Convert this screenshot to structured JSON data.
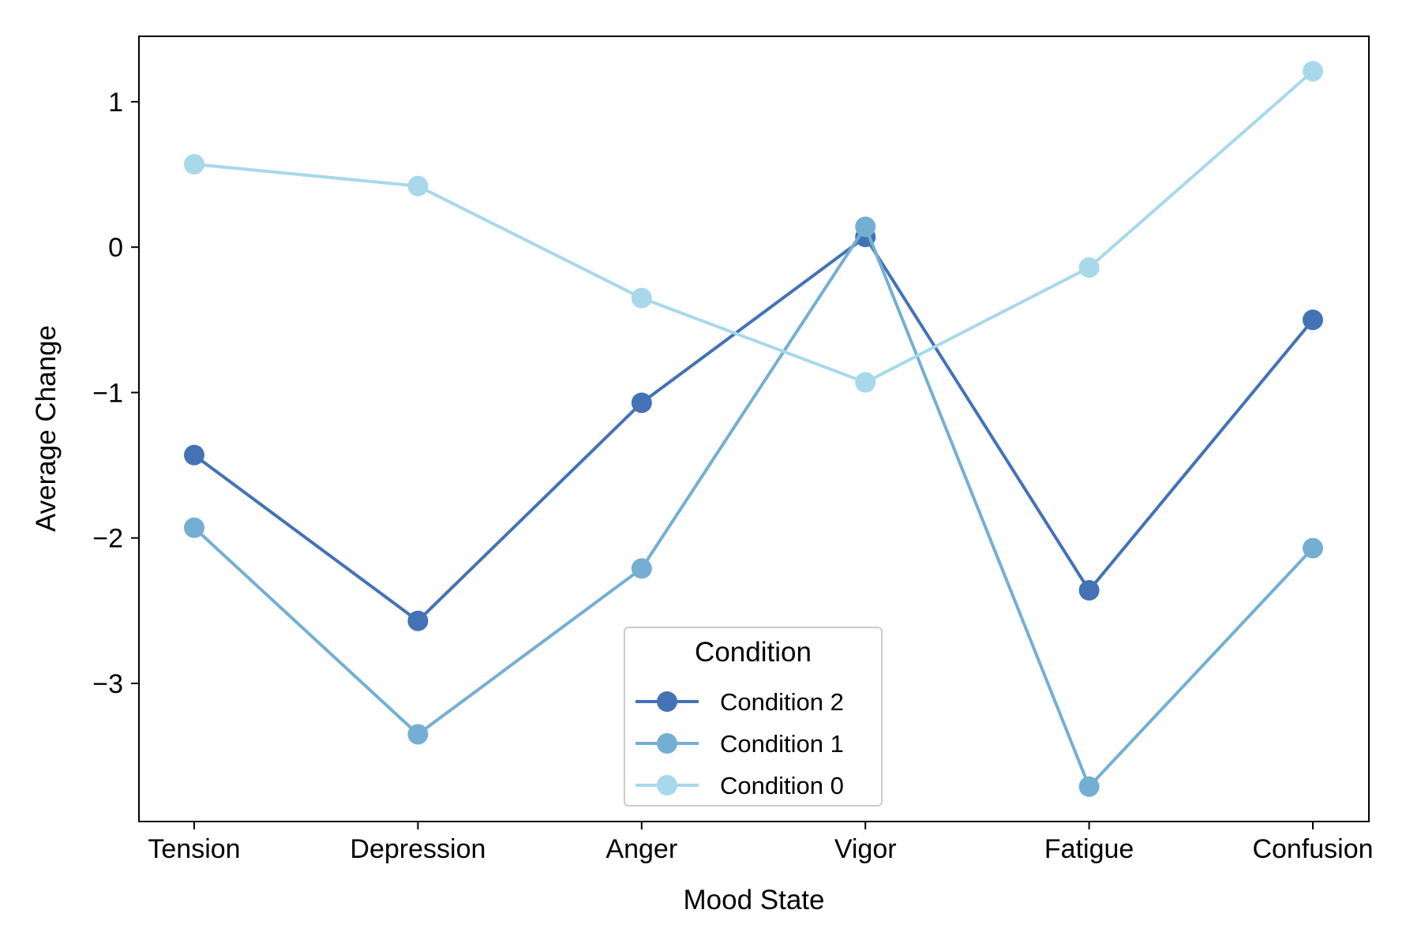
{
  "chart_data": {
    "type": "line",
    "xlabel": "Mood State",
    "ylabel": "Average Change",
    "categories": [
      "Tension",
      "Depression",
      "Anger",
      "Vigor",
      "Fatigue",
      "Confusion"
    ],
    "ylim": [
      -3.95,
      1.45
    ],
    "yticks": [
      1,
      0,
      -1,
      -2,
      -3
    ],
    "ytick_labels": [
      "1",
      "0",
      "−1",
      "−2",
      "−3"
    ],
    "grid": false,
    "legend": {
      "title": "Condition",
      "placement": "bottom-center"
    },
    "series": [
      {
        "name": "Condition 2",
        "color": "#4472b4",
        "values": [
          -1.43,
          -2.57,
          -1.07,
          0.07,
          -2.36,
          -0.5
        ]
      },
      {
        "name": "Condition 1",
        "color": "#74afd3",
        "values": [
          -1.93,
          -3.35,
          -2.21,
          0.14,
          -3.71,
          -2.07
        ]
      },
      {
        "name": "Condition 0",
        "color": "#a8d8ea",
        "values": [
          0.57,
          0.42,
          -0.35,
          -0.93,
          -0.14,
          1.21
        ]
      }
    ]
  }
}
